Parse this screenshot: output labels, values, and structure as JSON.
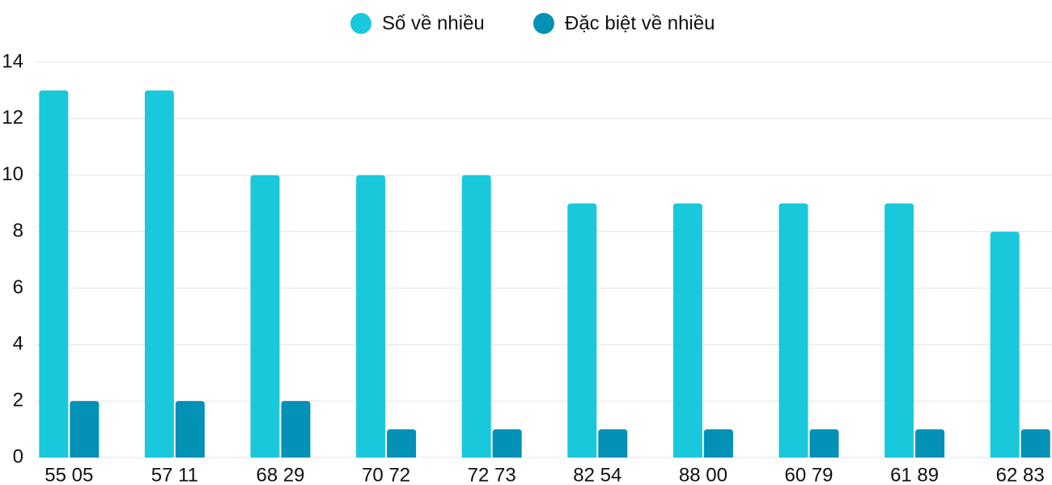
{
  "chart_data": {
    "type": "bar",
    "categories": [
      "55 05",
      "57 11",
      "68 29",
      "70 72",
      "72 73",
      "82 54",
      "88 00",
      "60 79",
      "61 89",
      "62 83"
    ],
    "series": [
      {
        "name": "Số về nhiều",
        "color": "#1ac8db",
        "values": [
          13,
          13,
          10,
          10,
          10,
          9,
          9,
          9,
          9,
          8
        ]
      },
      {
        "name": "Đặc biệt về nhiều",
        "color": "#0391b5",
        "values": [
          2,
          2,
          2,
          1,
          1,
          1,
          1,
          1,
          1,
          1
        ]
      }
    ],
    "ylim": [
      0,
      14
    ],
    "yticks": [
      0,
      2,
      4,
      6,
      8,
      10,
      12,
      14
    ],
    "grid": true,
    "legend": "top"
  }
}
